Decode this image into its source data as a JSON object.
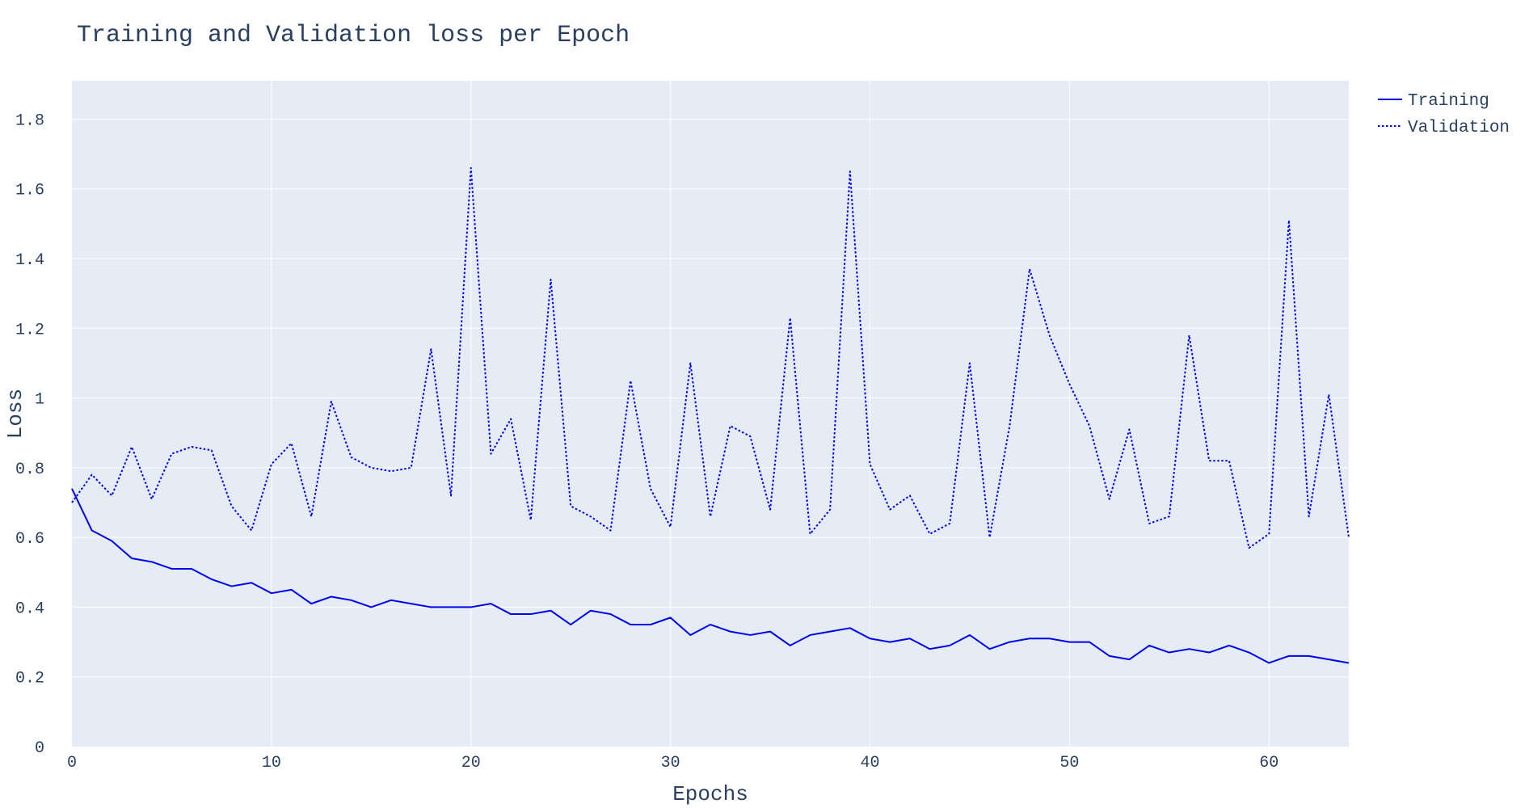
{
  "chart_data": {
    "type": "line",
    "title": "Training and Validation loss per Epoch",
    "xlabel": "Epochs",
    "ylabel": "Loss",
    "xlim": [
      0,
      64
    ],
    "ylim": [
      0,
      1.91
    ],
    "x_ticks": [
      0,
      10,
      20,
      30,
      40,
      50,
      60
    ],
    "y_ticks": [
      0,
      0.2,
      0.4,
      0.6,
      0.8,
      1,
      1.2,
      1.4,
      1.6,
      1.8
    ],
    "grid": true,
    "legend_position": "top-right",
    "colors": {
      "plot_bg": "#e5ecf6",
      "grid": "#ffffff",
      "series": "#0000ee",
      "text": "#2a3f5f"
    },
    "x": [
      0,
      1,
      2,
      3,
      4,
      5,
      6,
      7,
      8,
      9,
      10,
      11,
      12,
      13,
      14,
      15,
      16,
      17,
      18,
      19,
      20,
      21,
      22,
      23,
      24,
      25,
      26,
      27,
      28,
      29,
      30,
      31,
      32,
      33,
      34,
      35,
      36,
      37,
      38,
      39,
      40,
      41,
      42,
      43,
      44,
      45,
      46,
      47,
      48,
      49,
      50,
      51,
      52,
      53,
      54,
      55,
      56,
      57,
      58,
      59,
      60,
      61,
      62,
      63,
      64
    ],
    "series": [
      {
        "name": "Training",
        "dash": "solid",
        "values": [
          0.74,
          0.62,
          0.59,
          0.54,
          0.53,
          0.51,
          0.51,
          0.48,
          0.46,
          0.47,
          0.44,
          0.45,
          0.41,
          0.43,
          0.42,
          0.4,
          0.42,
          0.41,
          0.4,
          0.4,
          0.4,
          0.41,
          0.38,
          0.38,
          0.39,
          0.35,
          0.39,
          0.38,
          0.35,
          0.35,
          0.37,
          0.32,
          0.35,
          0.33,
          0.32,
          0.33,
          0.29,
          0.32,
          0.33,
          0.34,
          0.31,
          0.3,
          0.31,
          0.28,
          0.29,
          0.32,
          0.28,
          0.3,
          0.31,
          0.31,
          0.3,
          0.3,
          0.26,
          0.25,
          0.29,
          0.27,
          0.28,
          0.27,
          0.29,
          0.27,
          0.24,
          0.26,
          0.26,
          0.25,
          0.24
        ]
      },
      {
        "name": "Validation",
        "dash": "dot",
        "values": [
          0.7,
          0.78,
          0.72,
          0.86,
          0.71,
          0.84,
          0.86,
          0.85,
          0.69,
          0.62,
          0.81,
          0.87,
          0.66,
          0.99,
          0.83,
          0.8,
          0.79,
          0.8,
          1.14,
          0.72,
          1.66,
          0.84,
          0.94,
          0.65,
          1.34,
          0.69,
          0.66,
          0.62,
          1.05,
          0.74,
          0.63,
          1.1,
          0.66,
          0.92,
          0.89,
          0.68,
          1.23,
          0.61,
          0.68,
          1.65,
          0.81,
          0.68,
          0.72,
          0.61,
          0.64,
          1.1,
          0.6,
          0.92,
          1.37,
          1.18,
          1.04,
          0.92,
          0.71,
          0.91,
          0.64,
          0.66,
          1.18,
          0.82,
          0.82,
          0.57,
          0.61,
          1.51,
          0.66,
          1.01,
          0.6
        ]
      }
    ]
  }
}
